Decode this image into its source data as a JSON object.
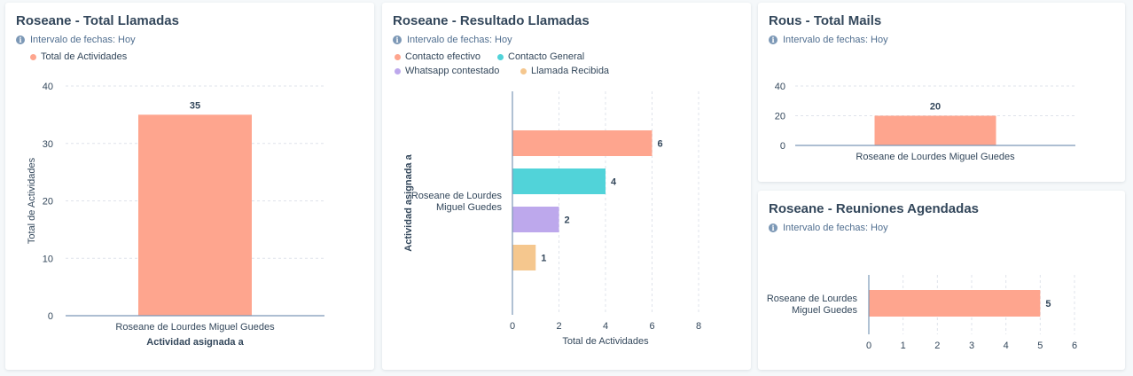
{
  "colors": {
    "salmon": "#fea58e",
    "teal": "#51d3d9",
    "purple": "#bda8ec",
    "peach": "#f5c78e",
    "axis": "#7c98b6",
    "grid": "#dfe3eb"
  },
  "icons": {
    "info": "info-circle-icon"
  },
  "info_glyph": "i",
  "cards": [
    {
      "id": "total-llamadas",
      "title": "Roseane - Total Llamadas",
      "date_range": "Intervalo de fechas: Hoy",
      "legend": [
        {
          "label": "Total de Actividades",
          "color": "#fea58e"
        }
      ],
      "chart_data": {
        "type": "bar",
        "orientation": "vertical",
        "categories": [
          "Roseane de Lourdes Miguel Guedes"
        ],
        "series": [
          {
            "name": "Total de Actividades",
            "values": [
              35
            ]
          }
        ],
        "xlabel": "Actividad asignada a",
        "ylabel": "Total de Actividades",
        "ylim": [
          0,
          40
        ],
        "yticks": [
          "0",
          "10",
          "20",
          "30",
          "40"
        ],
        "data_labels": [
          "35"
        ],
        "grid": true
      }
    },
    {
      "id": "resultado-llamadas",
      "title": "Roseane - Resultado Llamadas",
      "date_range": "Intervalo de fechas: Hoy",
      "legend": [
        {
          "label": "Contacto efectivo",
          "color": "#fea58e"
        },
        {
          "label": "Contacto General",
          "color": "#51d3d9"
        },
        {
          "label": "Whatsapp contestado",
          "color": "#bda8ec"
        },
        {
          "label": "Llamada Recibida",
          "color": "#f5c78e"
        }
      ],
      "chart_data": {
        "type": "bar",
        "orientation": "horizontal",
        "categories": [
          "Roseane de Lourdes Miguel Guedes"
        ],
        "category_lines": [
          "Roseane de Lourdes",
          "Miguel Guedes"
        ],
        "series": [
          {
            "name": "Contacto efectivo",
            "values": [
              6
            ]
          },
          {
            "name": "Contacto General",
            "values": [
              4
            ]
          },
          {
            "name": "Whatsapp contestado",
            "values": [
              2
            ]
          },
          {
            "name": "Llamada Recibida",
            "values": [
              1
            ]
          }
        ],
        "xlabel": "Total de Actividades",
        "ylabel": "Actividad asignada a",
        "xlim": [
          0,
          8
        ],
        "xticks": [
          "0",
          "2",
          "4",
          "6",
          "8"
        ],
        "data_labels": [
          "6",
          "4",
          "2",
          "1"
        ],
        "grid": true
      }
    },
    {
      "id": "total-mails",
      "title": "Rous - Total Mails",
      "date_range": "Intervalo de fechas: Hoy",
      "chart_data": {
        "type": "bar",
        "orientation": "vertical",
        "categories": [
          "Roseane de Lourdes Miguel Guedes"
        ],
        "series": [
          {
            "values": [
              20
            ]
          }
        ],
        "ylim": [
          0,
          40
        ],
        "yticks": [
          "0",
          "20",
          "40"
        ],
        "data_labels": [
          "20"
        ],
        "grid": true
      }
    },
    {
      "id": "reuniones-agendadas",
      "title": "Roseane - Reuniones Agendadas",
      "date_range": "Intervalo de fechas: Hoy",
      "chart_data": {
        "type": "bar",
        "orientation": "horizontal",
        "categories": [
          "Roseane de Lourdes Miguel Guedes"
        ],
        "category_lines": [
          "Roseane de Lourdes",
          "Miguel Guedes"
        ],
        "series": [
          {
            "values": [
              5
            ]
          }
        ],
        "xlim": [
          0,
          6
        ],
        "xticks": [
          "0",
          "1",
          "2",
          "3",
          "4",
          "5",
          "6"
        ],
        "data_labels": [
          "5"
        ],
        "grid": true
      }
    }
  ]
}
